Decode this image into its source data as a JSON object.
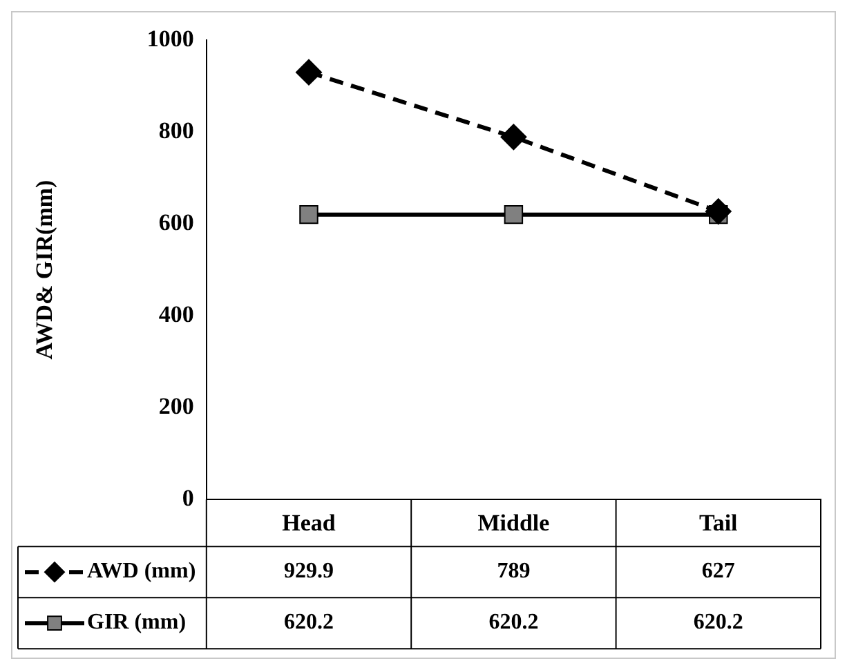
{
  "chart_data": {
    "type": "line",
    "ylabel": "AWD& GIR(mm)",
    "categories": [
      "Head",
      "Middle",
      "Tail"
    ],
    "series": [
      {
        "name": "AWD (mm)",
        "color": "#000000",
        "values": [
          929.9,
          789,
          627
        ],
        "marker": "diamond",
        "line_style": "dashed"
      },
      {
        "name": "GIR (mm)",
        "color": "#808080",
        "values": [
          620.2,
          620.2,
          620.2
        ],
        "marker": "square",
        "line_style": "solid"
      }
    ],
    "ylim": [
      0,
      1000
    ],
    "yticks": [
      0,
      200,
      400,
      600,
      800,
      1000
    ],
    "grid": false,
    "legend": "bottom",
    "data_labels": true
  }
}
